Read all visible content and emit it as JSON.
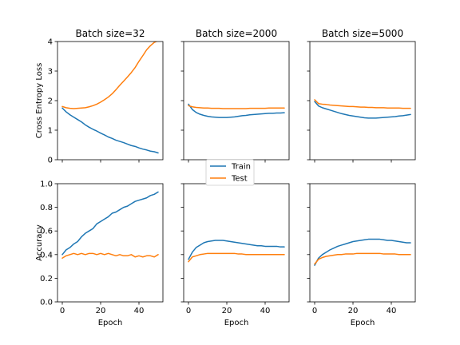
{
  "chart_data": {
    "type": "line",
    "layout": "2x3 grid, shared x per column, shared y per row",
    "legend": {
      "placement": "center, between rows",
      "entries": [
        {
          "label": "Train",
          "color": "#1f77b4"
        },
        {
          "label": "Test",
          "color": "#ff7f0e"
        }
      ]
    },
    "rows": [
      {
        "ylabel": "Cross Entropy Loss",
        "ylim": [
          0,
          4
        ],
        "yticks": [
          0,
          1,
          2,
          3,
          4
        ],
        "ytick_labels": [
          "0",
          "1",
          "2",
          "3",
          "4"
        ]
      },
      {
        "ylabel": "Accuracy",
        "ylim": [
          0.0,
          1.0
        ],
        "yticks": [
          0.0,
          0.2,
          0.4,
          0.6,
          0.8,
          1.0
        ],
        "ytick_labels": [
          "0.0",
          "0.2",
          "0.4",
          "0.6",
          "0.8",
          "1.0"
        ]
      }
    ],
    "x_axis": {
      "xlabel": "Epoch",
      "xlim": [
        -2.5,
        52.5
      ],
      "xticks": [
        0,
        20,
        40
      ],
      "xtick_labels": [
        "0",
        "20",
        "40"
      ]
    },
    "panels": [
      {
        "title": "Batch size=32",
        "row": 0,
        "col": 0,
        "series": [
          {
            "name": "Train",
            "color": "#1f77b4",
            "x": [
              0,
              2,
              4,
              6,
              8,
              10,
              12,
              14,
              16,
              18,
              20,
              22,
              24,
              26,
              28,
              30,
              32,
              34,
              36,
              38,
              40,
              42,
              44,
              46,
              48,
              50
            ],
            "y": [
              1.75,
              1.62,
              1.52,
              1.44,
              1.36,
              1.28,
              1.18,
              1.1,
              1.03,
              0.97,
              0.9,
              0.84,
              0.77,
              0.72,
              0.66,
              0.62,
              0.58,
              0.53,
              0.48,
              0.45,
              0.4,
              0.36,
              0.33,
              0.29,
              0.27,
              0.23
            ]
          },
          {
            "name": "Test",
            "color": "#ff7f0e",
            "x": [
              0,
              2,
              4,
              6,
              8,
              10,
              12,
              14,
              16,
              18,
              20,
              22,
              24,
              26,
              28,
              30,
              32,
              34,
              36,
              38,
              40,
              42,
              44,
              46,
              48,
              50
            ],
            "y": [
              1.8,
              1.76,
              1.74,
              1.73,
              1.74,
              1.75,
              1.76,
              1.79,
              1.83,
              1.88,
              1.95,
              2.03,
              2.12,
              2.23,
              2.37,
              2.52,
              2.66,
              2.8,
              2.95,
              3.12,
              3.33,
              3.52,
              3.72,
              3.86,
              3.97,
              4.03
            ]
          }
        ]
      },
      {
        "title": "Batch size=2000",
        "row": 0,
        "col": 1,
        "series": [
          {
            "name": "Train",
            "color": "#1f77b4",
            "x": [
              0,
              2,
              4,
              6,
              8,
              10,
              12,
              14,
              16,
              18,
              20,
              22,
              24,
              26,
              28,
              30,
              32,
              34,
              36,
              38,
              40,
              42,
              44,
              46,
              48,
              50
            ],
            "y": [
              1.88,
              1.7,
              1.6,
              1.54,
              1.5,
              1.47,
              1.45,
              1.44,
              1.43,
              1.43,
              1.43,
              1.44,
              1.45,
              1.47,
              1.49,
              1.5,
              1.52,
              1.53,
              1.54,
              1.55,
              1.56,
              1.57,
              1.57,
              1.58,
              1.58,
              1.59
            ]
          },
          {
            "name": "Test",
            "color": "#ff7f0e",
            "x": [
              0,
              2,
              4,
              6,
              8,
              10,
              12,
              14,
              16,
              18,
              20,
              22,
              24,
              26,
              28,
              30,
              32,
              34,
              36,
              38,
              40,
              42,
              44,
              46,
              48,
              50
            ],
            "y": [
              1.83,
              1.79,
              1.77,
              1.76,
              1.75,
              1.75,
              1.74,
              1.74,
              1.74,
              1.73,
              1.73,
              1.73,
              1.73,
              1.73,
              1.73,
              1.73,
              1.74,
              1.74,
              1.74,
              1.74,
              1.74,
              1.75,
              1.75,
              1.75,
              1.75,
              1.75
            ]
          }
        ]
      },
      {
        "title": "Batch size=5000",
        "row": 0,
        "col": 2,
        "series": [
          {
            "name": "Train",
            "color": "#1f77b4",
            "x": [
              0,
              2,
              4,
              6,
              8,
              10,
              12,
              14,
              16,
              18,
              20,
              22,
              24,
              26,
              28,
              30,
              32,
              34,
              36,
              38,
              40,
              42,
              44,
              46,
              48,
              50
            ],
            "y": [
              1.97,
              1.82,
              1.76,
              1.72,
              1.68,
              1.64,
              1.6,
              1.56,
              1.53,
              1.5,
              1.48,
              1.46,
              1.44,
              1.42,
              1.41,
              1.41,
              1.41,
              1.42,
              1.43,
              1.44,
              1.45,
              1.46,
              1.48,
              1.49,
              1.51,
              1.53
            ]
          },
          {
            "name": "Test",
            "color": "#ff7f0e",
            "x": [
              0,
              2,
              4,
              6,
              8,
              10,
              12,
              14,
              16,
              18,
              20,
              22,
              24,
              26,
              28,
              30,
              32,
              34,
              36,
              38,
              40,
              42,
              44,
              46,
              48,
              50
            ],
            "y": [
              2.03,
              1.9,
              1.88,
              1.87,
              1.85,
              1.84,
              1.83,
              1.82,
              1.81,
              1.8,
              1.8,
              1.79,
              1.78,
              1.78,
              1.77,
              1.77,
              1.76,
              1.76,
              1.76,
              1.75,
              1.75,
              1.75,
              1.75,
              1.74,
              1.74,
              1.74
            ]
          }
        ]
      },
      {
        "title": "",
        "row": 1,
        "col": 0,
        "series": [
          {
            "name": "Train",
            "color": "#1f77b4",
            "x": [
              0,
              2,
              4,
              6,
              8,
              10,
              12,
              14,
              16,
              18,
              20,
              22,
              24,
              26,
              28,
              30,
              32,
              34,
              36,
              38,
              40,
              42,
              44,
              46,
              48,
              50
            ],
            "y": [
              0.4,
              0.44,
              0.46,
              0.49,
              0.51,
              0.55,
              0.58,
              0.6,
              0.62,
              0.66,
              0.68,
              0.7,
              0.72,
              0.75,
              0.76,
              0.78,
              0.8,
              0.81,
              0.83,
              0.85,
              0.86,
              0.87,
              0.88,
              0.9,
              0.91,
              0.93
            ]
          },
          {
            "name": "Test",
            "color": "#ff7f0e",
            "x": [
              0,
              2,
              4,
              6,
              8,
              10,
              12,
              14,
              16,
              18,
              20,
              22,
              24,
              26,
              28,
              30,
              32,
              34,
              36,
              38,
              40,
              42,
              44,
              46,
              48,
              50
            ],
            "y": [
              0.37,
              0.39,
              0.4,
              0.41,
              0.4,
              0.41,
              0.4,
              0.41,
              0.41,
              0.4,
              0.41,
              0.4,
              0.41,
              0.4,
              0.39,
              0.4,
              0.39,
              0.39,
              0.4,
              0.38,
              0.39,
              0.38,
              0.39,
              0.39,
              0.38,
              0.4
            ]
          }
        ]
      },
      {
        "title": "",
        "row": 1,
        "col": 1,
        "series": [
          {
            "name": "Train",
            "color": "#1f77b4",
            "x": [
              0,
              2,
              4,
              6,
              8,
              10,
              12,
              14,
              16,
              18,
              20,
              22,
              24,
              26,
              28,
              30,
              32,
              34,
              36,
              38,
              40,
              42,
              44,
              46,
              48,
              50
            ],
            "y": [
              0.36,
              0.42,
              0.46,
              0.48,
              0.5,
              0.51,
              0.515,
              0.52,
              0.52,
              0.52,
              0.515,
              0.51,
              0.505,
              0.5,
              0.495,
              0.49,
              0.485,
              0.48,
              0.475,
              0.475,
              0.47,
              0.47,
              0.47,
              0.47,
              0.465,
              0.465
            ]
          },
          {
            "name": "Test",
            "color": "#ff7f0e",
            "x": [
              0,
              2,
              4,
              6,
              8,
              10,
              12,
              14,
              16,
              18,
              20,
              22,
              24,
              26,
              28,
              30,
              32,
              34,
              36,
              38,
              40,
              42,
              44,
              46,
              48,
              50
            ],
            "y": [
              0.34,
              0.38,
              0.39,
              0.4,
              0.405,
              0.41,
              0.41,
              0.41,
              0.41,
              0.41,
              0.41,
              0.41,
              0.41,
              0.405,
              0.405,
              0.4,
              0.4,
              0.4,
              0.4,
              0.4,
              0.4,
              0.4,
              0.4,
              0.4,
              0.4,
              0.4
            ]
          }
        ]
      },
      {
        "title": "",
        "row": 1,
        "col": 2,
        "series": [
          {
            "name": "Train",
            "color": "#1f77b4",
            "x": [
              0,
              2,
              4,
              6,
              8,
              10,
              12,
              14,
              16,
              18,
              20,
              22,
              24,
              26,
              28,
              30,
              32,
              34,
              36,
              38,
              40,
              42,
              44,
              46,
              48,
              50
            ],
            "y": [
              0.31,
              0.37,
              0.4,
              0.42,
              0.44,
              0.455,
              0.47,
              0.48,
              0.49,
              0.5,
              0.51,
              0.515,
              0.52,
              0.525,
              0.53,
              0.53,
              0.53,
              0.53,
              0.525,
              0.52,
              0.52,
              0.515,
              0.51,
              0.505,
              0.5,
              0.5
            ]
          },
          {
            "name": "Test",
            "color": "#ff7f0e",
            "x": [
              0,
              2,
              4,
              6,
              8,
              10,
              12,
              14,
              16,
              18,
              20,
              22,
              24,
              26,
              28,
              30,
              32,
              34,
              36,
              38,
              40,
              42,
              44,
              46,
              48,
              50
            ],
            "y": [
              0.32,
              0.36,
              0.375,
              0.385,
              0.39,
              0.395,
              0.4,
              0.4,
              0.405,
              0.405,
              0.405,
              0.41,
              0.41,
              0.41,
              0.41,
              0.41,
              0.41,
              0.41,
              0.405,
              0.405,
              0.405,
              0.405,
              0.4,
              0.4,
              0.4,
              0.4
            ]
          }
        ]
      }
    ]
  }
}
